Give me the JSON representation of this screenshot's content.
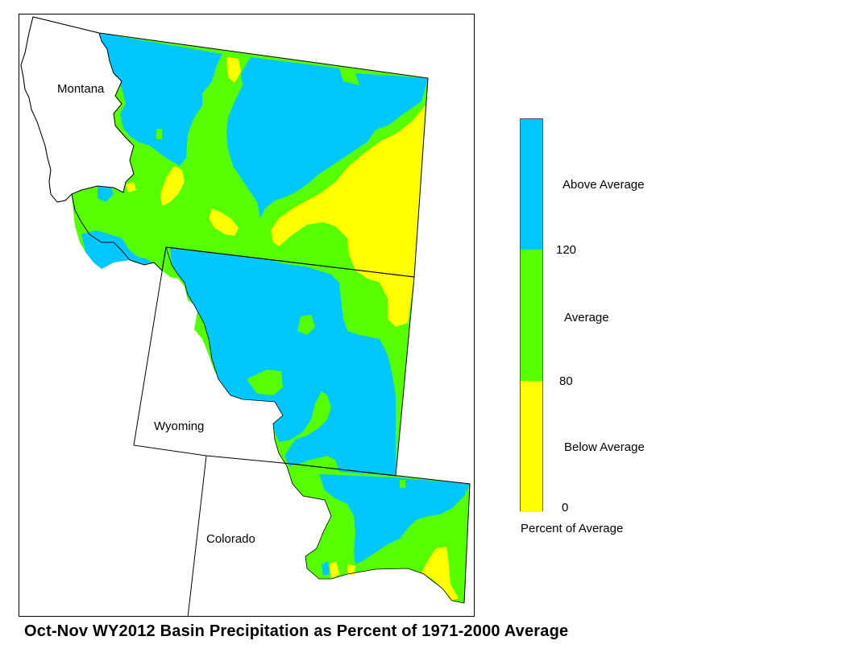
{
  "map": {
    "states": [
      {
        "id": "montana",
        "name": "Montana"
      },
      {
        "id": "wyoming",
        "name": "Wyoming"
      },
      {
        "id": "colorado",
        "name": "Colorado"
      }
    ]
  },
  "legend": {
    "title": "Percent of Average",
    "categories": [
      {
        "label": "Above Average",
        "color": "#00c8ff",
        "range": [
          120,
          null
        ]
      },
      {
        "label": "Average",
        "color": "#55ff00",
        "range": [
          80,
          120
        ]
      },
      {
        "label": "Below Average",
        "color": "#ffff00",
        "range": [
          0,
          80
        ]
      }
    ],
    "ticks": [
      "120",
      "80",
      "0"
    ]
  },
  "title": "Oct-Nov WY2012 Basin Precipitation as Percent of 1971-2000 Average"
}
